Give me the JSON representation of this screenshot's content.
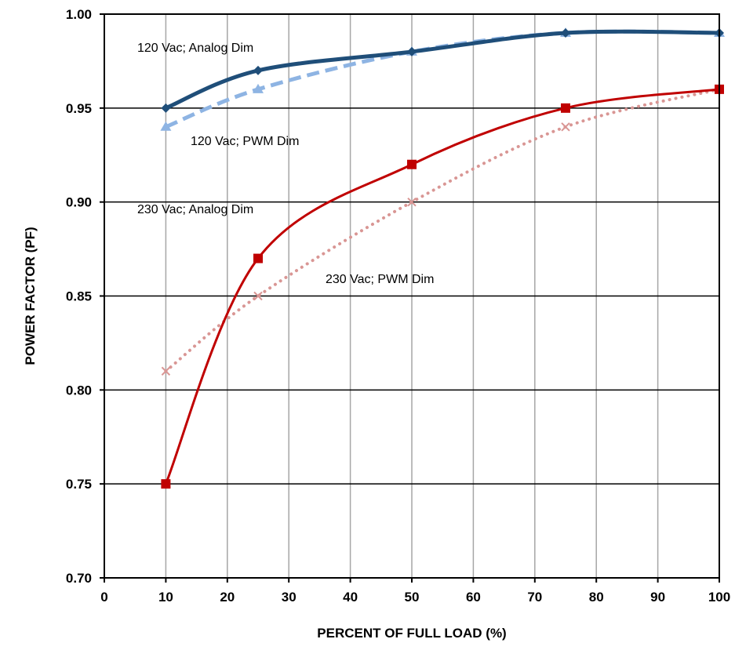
{
  "chart_data": {
    "type": "line",
    "xlabel": "PERCENT OF FULL LOAD (%)",
    "ylabel": "POWER FACTOR (PF)",
    "xlim": [
      0,
      100
    ],
    "ylim": [
      0.7,
      1.0
    ],
    "x_ticks": [
      "0",
      "10",
      "20",
      "30",
      "40",
      "50",
      "60",
      "70",
      "80",
      "90",
      "100"
    ],
    "y_ticks": [
      "0.70",
      "0.75",
      "0.80",
      "0.85",
      "0.90",
      "0.95",
      "1.00"
    ],
    "grid": true,
    "series": [
      {
        "name": "120 Vac; Analog Dim",
        "color": "#1f4e79",
        "style": "solid-thick",
        "marker": "diamond",
        "x": [
          10,
          25,
          50,
          75,
          100
        ],
        "y": [
          0.95,
          0.97,
          0.98,
          0.99,
          0.99
        ]
      },
      {
        "name": "120 Vac; PWM Dim",
        "color": "#8eb4e3",
        "style": "dashed",
        "marker": "triangle",
        "x": [
          10,
          25,
          50,
          75,
          100
        ],
        "y": [
          0.94,
          0.96,
          0.98,
          0.99,
          0.99
        ]
      },
      {
        "name": "230 Vac; Analog Dim",
        "color": "#c00000",
        "style": "solid",
        "marker": "square",
        "x": [
          10,
          25,
          50,
          75,
          100
        ],
        "y": [
          0.75,
          0.87,
          0.92,
          0.95,
          0.96
        ]
      },
      {
        "name": "230 Vac; PWM Dim",
        "color": "#d99694",
        "style": "dotted",
        "marker": "x",
        "x": [
          10,
          25,
          50,
          75,
          100
        ],
        "y": [
          0.81,
          0.85,
          0.9,
          0.94,
          0.96
        ]
      }
    ]
  }
}
